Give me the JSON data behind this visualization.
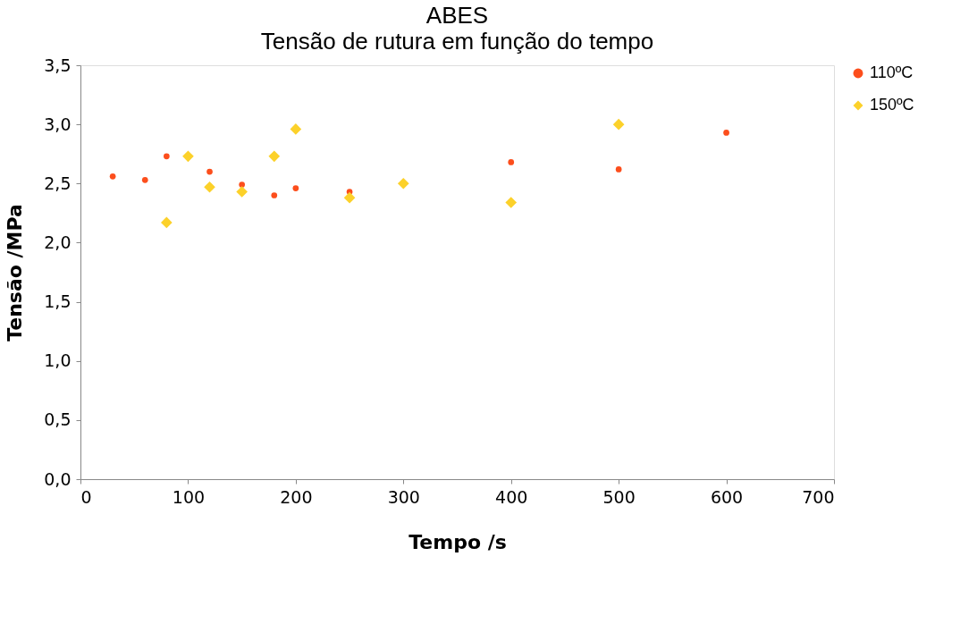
{
  "chart_data": {
    "type": "scatter",
    "title": "ABES",
    "subtitle": "Tensão de rutura em função do tempo",
    "xlabel": "Tempo /s",
    "ylabel": "Tensão /MPa",
    "xlim": [
      0,
      700
    ],
    "xticks": [
      0,
      100,
      200,
      300,
      400,
      500,
      600,
      700
    ],
    "ylim": [
      0,
      3.5
    ],
    "yticks": [
      {
        "value": 0,
        "label": "0,0"
      },
      {
        "value": 0.5,
        "label": "0,5"
      },
      {
        "value": 1,
        "label": "1,0"
      },
      {
        "value": 1.5,
        "label": "1,5"
      },
      {
        "value": 2,
        "label": "2,0"
      },
      {
        "value": 2.5,
        "label": "2,5"
      },
      {
        "value": 3,
        "label": "3,0"
      },
      {
        "value": 3.5,
        "label": "3,5"
      }
    ],
    "grid": false,
    "legend": "right",
    "series": [
      {
        "name": "110ºC",
        "color": "#fc4e1c",
        "marker": "circle",
        "x": [
          30,
          60,
          80,
          120,
          150,
          180,
          200,
          250,
          400,
          500,
          600
        ],
        "values": [
          2.56,
          2.53,
          2.73,
          2.6,
          2.49,
          2.4,
          2.46,
          2.43,
          2.68,
          2.62,
          2.93
        ]
      },
      {
        "name": "150ºC",
        "color": "#fcd12a",
        "marker": "diamond",
        "x": [
          80,
          100,
          120,
          150,
          180,
          200,
          250,
          300,
          400,
          500
        ],
        "values": [
          2.17,
          2.73,
          2.47,
          2.43,
          2.73,
          2.96,
          2.38,
          2.5,
          2.34,
          3.0
        ]
      }
    ]
  }
}
